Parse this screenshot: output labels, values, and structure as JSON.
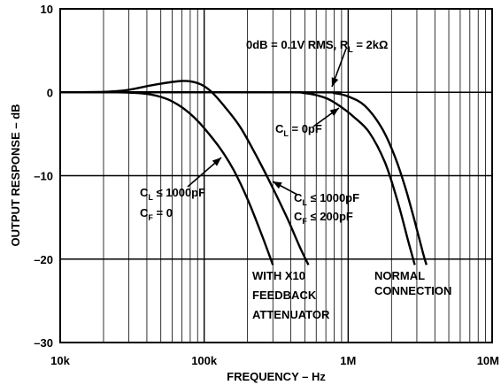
{
  "chart_data": {
    "type": "line",
    "title": "",
    "xlabel": "FREQUENCY – Hz",
    "ylabel": "OUTPUT RESPONSE – dB",
    "x_scale": "log",
    "xlim": [
      10000,
      10000000
    ],
    "ylim": [
      -30,
      10
    ],
    "grid": true,
    "x_ticks": [
      {
        "value": 10000,
        "label": "10k"
      },
      {
        "value": 100000,
        "label": "100k"
      },
      {
        "value": 1000000,
        "label": "1M"
      },
      {
        "value": 10000000,
        "label": "10M"
      }
    ],
    "y_ticks": [
      {
        "value": 10,
        "label": "10"
      },
      {
        "value": 0,
        "label": "0"
      },
      {
        "value": -10,
        "label": "–10"
      },
      {
        "value": -20,
        "label": "–20"
      },
      {
        "value": -30,
        "label": "–30"
      }
    ],
    "series": [
      {
        "x": [
          10000,
          25000,
          40000,
          55000,
          70000,
          85000,
          100000,
          130000,
          160000,
          200000,
          250000,
          300000
        ],
        "y": [
          0,
          0,
          -0.2,
          -0.8,
          -1.8,
          -3,
          -4.3,
          -6.8,
          -9.3,
          -12.8,
          -17,
          -20.7
        ]
      },
      {
        "x": [
          10000,
          20000,
          30000,
          45000,
          70000,
          90000,
          110000,
          140000,
          180000,
          240000,
          300000,
          380000,
          460000,
          530000
        ],
        "y": [
          0,
          0.05,
          0.3,
          0.9,
          1.35,
          1.1,
          0.2,
          -1.8,
          -4.3,
          -8.2,
          -11.5,
          -15.2,
          -18.5,
          -20.7
        ]
      },
      {
        "x": [
          10000,
          300000,
          500000,
          700000,
          900000,
          1100000,
          1400000,
          1800000,
          2200000,
          2600000,
          2900000
        ],
        "y": [
          0,
          0,
          -0.1,
          -0.7,
          -1.8,
          -3,
          -4.8,
          -8.4,
          -13,
          -17.7,
          -20.7
        ]
      },
      {
        "x": [
          10000,
          600000,
          800000,
          1000000,
          1300000,
          1700000,
          2100000,
          2500000,
          2900000,
          3300000,
          3500000
        ],
        "y": [
          0,
          0,
          -0.1,
          -0.5,
          -1.6,
          -4.2,
          -7.6,
          -11.5,
          -15.5,
          -19.2,
          -20.7
        ]
      }
    ],
    "annotations": [
      {
        "parts": [
          {
            "t": "C"
          },
          {
            "t": "L",
            "sub": true
          },
          {
            "t": " ≤ 1000pF"
          }
        ]
      },
      {
        "parts": [
          {
            "t": "C"
          },
          {
            "t": "F",
            "sub": true
          },
          {
            "t": " = 0"
          }
        ]
      },
      {
        "parts": [
          {
            "t": "C"
          },
          {
            "t": "L",
            "sub": true
          },
          {
            "t": " ≤ 1000pF"
          }
        ]
      },
      {
        "parts": [
          {
            "t": "C"
          },
          {
            "t": "F",
            "sub": true
          },
          {
            "t": " ≤ 200pF"
          }
        ]
      },
      {
        "parts": [
          {
            "t": "C"
          },
          {
            "t": "L",
            "sub": true
          },
          {
            "t": " = 0pF"
          }
        ]
      },
      {
        "parts": [
          {
            "t": "0dB = 0.1V RMS, R"
          },
          {
            "t": "L",
            "sub": true
          },
          {
            "t": " = 2kΩ"
          }
        ]
      },
      {
        "parts": [
          {
            "t": "WITH X10"
          }
        ]
      },
      {
        "parts": [
          {
            "t": "FEEDBACK"
          }
        ]
      },
      {
        "parts": [
          {
            "t": "ATTENUATOR"
          }
        ]
      },
      {
        "parts": [
          {
            "t": "NORMAL"
          }
        ]
      },
      {
        "parts": [
          {
            "t": "CONNECTION"
          }
        ]
      }
    ]
  }
}
